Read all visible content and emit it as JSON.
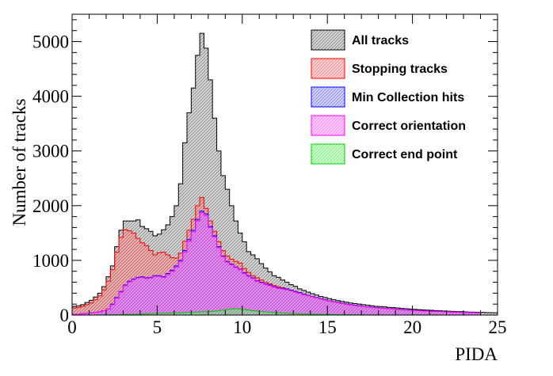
{
  "chart_data": {
    "type": "histogram",
    "title": "",
    "xlabel": "PIDA",
    "ylabel": "Number of tracks",
    "xlim": [
      0,
      25
    ],
    "ylim": [
      0,
      5500
    ],
    "bin_width": 0.25,
    "bin_start": 0,
    "x_ticks": [
      "0",
      "5",
      "10",
      "15",
      "20",
      "25"
    ],
    "y_ticks": [
      "0",
      "1000",
      "2000",
      "3000",
      "4000",
      "5000"
    ],
    "legend_position": "top-right",
    "series": [
      {
        "name": "All tracks",
        "line_color": "#000000",
        "fill_color": "#8a8a8a",
        "hatch_opacity": 0.35,
        "values": [
          160,
          170,
          190,
          230,
          270,
          330,
          400,
          520,
          700,
          900,
          1250,
          1550,
          1720,
          1720,
          1720,
          1740,
          1620,
          1580,
          1530,
          1450,
          1480,
          1560,
          1650,
          1800,
          2000,
          2400,
          3150,
          3700,
          4150,
          4750,
          5150,
          4880,
          4300,
          3600,
          3000,
          2550,
          2300,
          2000,
          1720,
          1500,
          1340,
          1160,
          1100,
          1030,
          940,
          860,
          790,
          720,
          690,
          640,
          600,
          555,
          525,
          480,
          450,
          420,
          390,
          365,
          340,
          320,
          300,
          280,
          265,
          250,
          235,
          220,
          210,
          200,
          190,
          180,
          170,
          160,
          155,
          150,
          140,
          135,
          130,
          122,
          115,
          110,
          105,
          100,
          95,
          90,
          86,
          82,
          78,
          74,
          70,
          67,
          64,
          61,
          58,
          55,
          52,
          50,
          48,
          46,
          44,
          42
        ]
      },
      {
        "name": "Stopping tracks",
        "line_color": "#ff0000",
        "fill_color": "#ff8080",
        "hatch_opacity": 0.35,
        "values": [
          130,
          140,
          160,
          190,
          220,
          280,
          350,
          460,
          620,
          830,
          1150,
          1420,
          1560,
          1540,
          1500,
          1400,
          1320,
          1270,
          1180,
          1100,
          1140,
          1150,
          1100,
          1050,
          1040,
          1130,
          1350,
          1550,
          1750,
          2000,
          2150,
          1950,
          1720,
          1530,
          1340,
          1180,
          1080,
          1020,
          980,
          950,
          850,
          780,
          720,
          680,
          640,
          600,
          570,
          540,
          520,
          500,
          480,
          455,
          435,
          410,
          385,
          360,
          340,
          320,
          300,
          280,
          260,
          245,
          230,
          215,
          200,
          190,
          180,
          170,
          160,
          152,
          145,
          138,
          130,
          124,
          118,
          112,
          106,
          100,
          95,
          90,
          86,
          82,
          78,
          74,
          71,
          68,
          65,
          62,
          59,
          56,
          53,
          50,
          48,
          46,
          44,
          42
        ]
      },
      {
        "name": "Min Collection hits",
        "line_color": "#0000ff",
        "fill_color": "#8080ff",
        "hatch_opacity": 0.35,
        "values": [
          10,
          15,
          25,
          30,
          40,
          50,
          60,
          80,
          110,
          200,
          320,
          430,
          550,
          620,
          660,
          690,
          700,
          680,
          690,
          720,
          720,
          700,
          760,
          820,
          900,
          1000,
          1180,
          1380,
          1550,
          1750,
          1900,
          1850,
          1620,
          1450,
          1250,
          1080,
          980,
          930,
          880,
          840,
          770,
          720,
          680,
          630,
          600,
          570,
          550,
          520,
          500,
          490,
          475,
          455,
          430,
          410,
          385,
          360,
          340,
          320,
          300,
          280,
          260,
          245,
          230,
          215,
          200,
          190,
          180,
          170,
          160,
          152,
          145,
          138,
          130,
          124,
          118,
          112,
          106,
          100,
          95,
          90,
          86,
          82,
          78,
          74,
          71,
          68,
          65,
          62,
          59,
          56,
          53,
          50,
          48,
          46,
          44,
          42
        ]
      },
      {
        "name": "Correct orientation",
        "line_color": "#ff00ff",
        "fill_color": "#ff80ff",
        "hatch_opacity": 0.4,
        "values": [
          10,
          15,
          25,
          30,
          40,
          50,
          60,
          80,
          110,
          190,
          310,
          420,
          540,
          610,
          650,
          680,
          690,
          670,
          680,
          710,
          710,
          690,
          740,
          800,
          880,
          980,
          1150,
          1350,
          1520,
          1720,
          1870,
          1820,
          1600,
          1430,
          1230,
          1070,
          970,
          920,
          870,
          830,
          760,
          710,
          670,
          620,
          590,
          560,
          540,
          510,
          490,
          480,
          465,
          445,
          420,
          400,
          375,
          355,
          335,
          315,
          295,
          275,
          255,
          240,
          225,
          210,
          195,
          185,
          175,
          165,
          155,
          148,
          141,
          134,
          127,
          121,
          115,
          109,
          104,
          98,
          93,
          88,
          84,
          80,
          76,
          72,
          69,
          66,
          63,
          60,
          57,
          54,
          52,
          49,
          47,
          45,
          43,
          41
        ]
      },
      {
        "name": "Correct end point",
        "line_color": "#00cc00",
        "fill_color": "#80ff80",
        "hatch_opacity": 0.4,
        "values": [
          0,
          0,
          0,
          0,
          0,
          1,
          2,
          3,
          4,
          5,
          6,
          8,
          10,
          12,
          15,
          18,
          20,
          22,
          25,
          28,
          30,
          32,
          35,
          38,
          40,
          42,
          45,
          48,
          50,
          55,
          60,
          62,
          65,
          70,
          78,
          88,
          100,
          110,
          115,
          110,
          100,
          90,
          80,
          72,
          65,
          58,
          52,
          46,
          40,
          36,
          32,
          28,
          25,
          22,
          20,
          18,
          16,
          14,
          12,
          11,
          10,
          9,
          8,
          7,
          6,
          6,
          5,
          5,
          4,
          4,
          3,
          3,
          3,
          2,
          2,
          2,
          2,
          1,
          1,
          1,
          1,
          1,
          1,
          1,
          1,
          1,
          0,
          0,
          0,
          0,
          0,
          0,
          0,
          0,
          0,
          0
        ]
      }
    ]
  }
}
